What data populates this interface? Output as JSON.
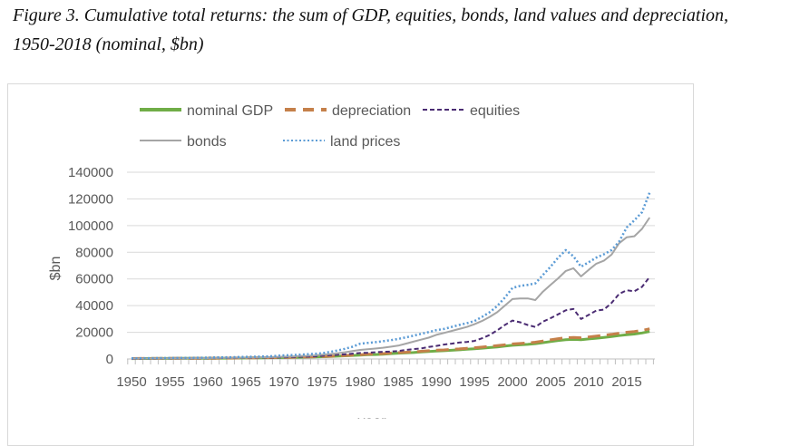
{
  "title_line1": "Figure 3. Cumulative total returns: the sum of GDP, equities, bonds, land values and depreciation,",
  "title_line2": "1950-2018 (nominal, $bn)",
  "chart_data": {
    "type": "line",
    "title": "",
    "xlabel": "year",
    "ylabel": "$bn",
    "ylim": [
      0,
      140000
    ],
    "yticks": [
      "0",
      "20000",
      "40000",
      "60000",
      "80000",
      "100000",
      "120000",
      "140000"
    ],
    "xticks": [
      "1950",
      "1955",
      "1960",
      "1965",
      "1970",
      "1975",
      "1980",
      "1985",
      "1990",
      "1995",
      "2000",
      "2005",
      "2010",
      "2015"
    ],
    "grid": true,
    "legend_position": "top",
    "x_start": 1950,
    "x_end": 2018,
    "series": [
      {
        "name": "nominal GDP",
        "color": "#70ad47",
        "style": "solid",
        "values": [
          300,
          347,
          367,
          389,
          391,
          426,
          450,
          474,
          481,
          522,
          543,
          563,
          605,
          638,
          686,
          744,
          815,
          862,
          943,
          1019,
          1073,
          1165,
          1280,
          1425,
          1545,
          1684,
          1873,
          2082,
          2352,
          2627,
          2857,
          3207,
          3343,
          3634,
          4037,
          4339,
          4580,
          4855,
          5236,
          5642,
          5963,
          6158,
          6520,
          6859,
          7287,
          7639,
          8073,
          8577,
          9063,
          9631,
          10252,
          10582,
          10936,
          11458,
          12214,
          13037,
          13815,
          14452,
          14713,
          14449,
          14992,
          15543,
          16197,
          16785,
          17522,
          18219,
          18707,
          19485,
          20580
        ]
      },
      {
        "name": "depreciation",
        "color": "#c5804a",
        "style": "longdash",
        "values": [
          330,
          380,
          400,
          430,
          430,
          470,
          495,
          520,
          530,
          575,
          600,
          620,
          665,
          700,
          755,
          820,
          895,
          950,
          1040,
          1120,
          1180,
          1280,
          1410,
          1570,
          1700,
          1850,
          2060,
          2290,
          2590,
          2890,
          3140,
          3530,
          3680,
          4000,
          4440,
          4770,
          5040,
          5340,
          5760,
          6210,
          6560,
          6770,
          7170,
          7550,
          8020,
          8400,
          8880,
          9430,
          9970,
          10590,
          11280,
          11640,
          12030,
          12600,
          13440,
          14340,
          15200,
          15900,
          16180,
          15890,
          16490,
          17100,
          17820,
          18460,
          19270,
          20040,
          20580,
          21430,
          22640
        ]
      },
      {
        "name": "equities",
        "color": "#4b2c73",
        "style": "dash",
        "values": [
          200,
          230,
          260,
          280,
          330,
          380,
          410,
          420,
          480,
          530,
          560,
          640,
          650,
          720,
          800,
          880,
          900,
          1000,
          1100,
          1150,
          1250,
          1450,
          1650,
          1800,
          2000,
          2400,
          2800,
          3100,
          3500,
          4000,
          4500,
          4700,
          5000,
          5400,
          5600,
          5900,
          6800,
          7400,
          7900,
          9000,
          9800,
          10800,
          11500,
          12300,
          12800,
          13500,
          15500,
          18000,
          21500,
          25500,
          28800,
          27500,
          25500,
          24000,
          28000,
          30600,
          33500,
          36500,
          37500,
          30000,
          33000,
          36300,
          37000,
          42000,
          48800,
          51500,
          50800,
          54000,
          61500
        ]
      },
      {
        "name": "bonds",
        "color": "#a5a5a5",
        "style": "solid",
        "values": [
          300,
          330,
          360,
          390,
          420,
          460,
          500,
          540,
          580,
          630,
          680,
          740,
          800,
          870,
          950,
          1030,
          1120,
          1220,
          1340,
          1500,
          1700,
          1900,
          2150,
          2400,
          2750,
          3200,
          3700,
          4300,
          5000,
          5900,
          6800,
          7300,
          7800,
          8400,
          9200,
          10000,
          11500,
          13000,
          14500,
          16000,
          18100,
          19500,
          21000,
          22500,
          24000,
          26000,
          28500,
          31500,
          35100,
          40000,
          44900,
          45300,
          45400,
          44200,
          50500,
          55600,
          60500,
          66000,
          68000,
          61900,
          66800,
          71400,
          73700,
          78200,
          86800,
          91300,
          92000,
          97500,
          106000
        ]
      },
      {
        "name": "land prices",
        "color": "#5b9bd5",
        "style": "dot",
        "values": [
          500,
          540,
          580,
          620,
          660,
          720,
          780,
          840,
          900,
          970,
          1050,
          1130,
          1220,
          1320,
          1430,
          1550,
          1680,
          1820,
          2000,
          2300,
          2700,
          2950,
          3200,
          3550,
          3900,
          4300,
          5200,
          6300,
          7600,
          9200,
          11400,
          12000,
          12600,
          13300,
          14100,
          15000,
          16200,
          17500,
          18800,
          20200,
          21600,
          22500,
          24000,
          25500,
          26800,
          28400,
          31500,
          35000,
          39700,
          46000,
          53300,
          54800,
          55500,
          56700,
          63000,
          69200,
          76000,
          81600,
          77000,
          69200,
          72500,
          76000,
          78500,
          81600,
          88000,
          98600,
          104000,
          110000,
          124700
        ]
      }
    ]
  }
}
